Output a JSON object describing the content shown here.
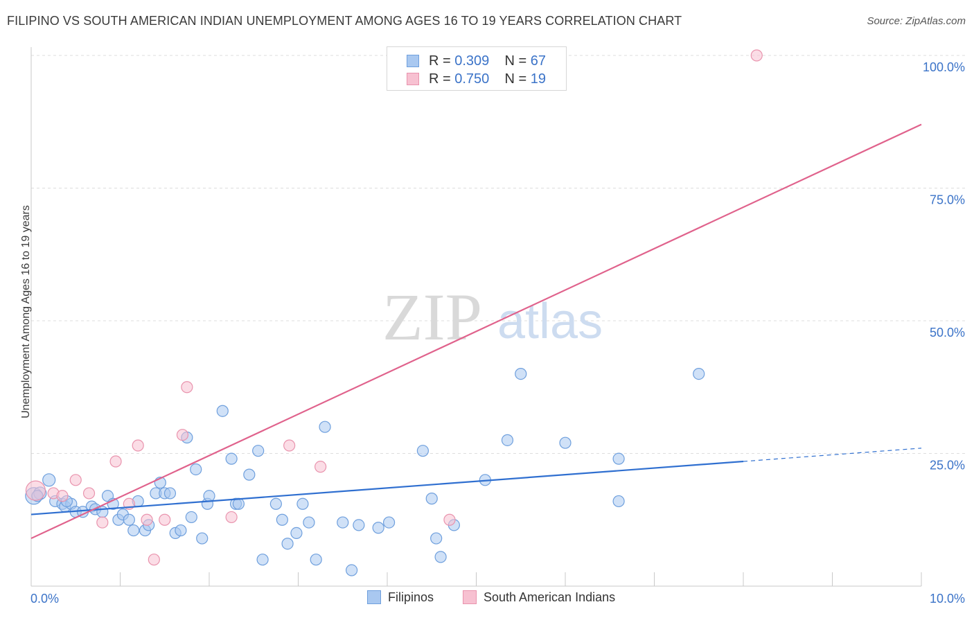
{
  "title": "FILIPINO VS SOUTH AMERICAN INDIAN UNEMPLOYMENT AMONG AGES 16 TO 19 YEARS CORRELATION CHART",
  "source": "Source: ZipAtlas.com",
  "watermark": {
    "zip": "ZIP",
    "atlas": "atlas"
  },
  "legend": {
    "series1": {
      "r_label": "R = ",
      "r_value": "0.309",
      "n_label": "N = ",
      "n_value": "67"
    },
    "series2": {
      "r_label": "R = ",
      "r_value": "0.750",
      "n_label": "N = ",
      "n_value": "19"
    }
  },
  "bottom_legend": {
    "series1": "Filipinos",
    "series2": "South American Indians"
  },
  "colors": {
    "blue_fill": "#a9c8f0",
    "blue_stroke": "#6e9fdd",
    "blue_line": "#2f6fd0",
    "pink_fill": "#f7c1d1",
    "pink_stroke": "#e993ad",
    "pink_line": "#e0628c",
    "axis_text": "#3b73c8",
    "grid": "#dddddd"
  },
  "chart_data": {
    "type": "scatter",
    "title": "FILIPINO VS SOUTH AMERICAN INDIAN UNEMPLOYMENT AMONG AGES 16 TO 19 YEARS CORRELATION CHART",
    "xlabel": "",
    "ylabel": "Unemployment Among Ages 16 to 19 years",
    "xlim": [
      0,
      10
    ],
    "ylim": [
      0,
      102
    ],
    "x_tick_labels": [
      "0.0%",
      "10.0%"
    ],
    "y_ticks": [
      25,
      50,
      75,
      100
    ],
    "y_tick_labels": [
      "25.0%",
      "50.0%",
      "75.0%",
      "100.0%"
    ],
    "grid": true,
    "legend_position": "top-center",
    "series": [
      {
        "name": "Filipinos",
        "R": 0.309,
        "N": 67,
        "trend": {
          "x0": 0,
          "y0": 13.5,
          "x1": 8.0,
          "y1": 23.5,
          "dashed_to_x": 10.0,
          "dashed_to_y": 26.0
        },
        "points": [
          [
            0.03,
            17.0,
            12
          ],
          [
            0.1,
            17.5,
            9
          ],
          [
            0.2,
            20.0,
            9
          ],
          [
            0.27,
            16.0,
            8
          ],
          [
            0.35,
            15.5,
            8
          ],
          [
            0.38,
            15.0,
            8
          ],
          [
            0.45,
            15.5,
            8
          ],
          [
            0.5,
            14.0,
            8
          ],
          [
            0.58,
            14.0,
            8
          ],
          [
            0.68,
            15.0,
            8
          ],
          [
            0.72,
            14.5,
            8
          ],
          [
            0.8,
            14.0,
            8
          ],
          [
            0.86,
            17.0,
            8
          ],
          [
            0.92,
            15.5,
            8
          ],
          [
            0.98,
            12.5,
            8
          ],
          [
            1.03,
            13.5,
            8
          ],
          [
            1.1,
            12.5,
            8
          ],
          [
            1.15,
            10.5,
            8
          ],
          [
            1.2,
            16.0,
            8
          ],
          [
            1.28,
            10.5,
            8
          ],
          [
            1.32,
            11.5,
            8
          ],
          [
            1.4,
            17.5,
            8
          ],
          [
            1.45,
            19.5,
            8
          ],
          [
            1.5,
            17.5,
            8
          ],
          [
            1.56,
            17.5,
            8
          ],
          [
            1.62,
            10.0,
            8
          ],
          [
            1.68,
            10.5,
            8
          ],
          [
            1.75,
            28.0,
            8
          ],
          [
            1.8,
            13.0,
            8
          ],
          [
            1.85,
            22.0,
            8
          ],
          [
            1.92,
            9.0,
            8
          ],
          [
            1.98,
            15.5,
            8
          ],
          [
            2.0,
            17.0,
            8
          ],
          [
            2.15,
            33.0,
            8
          ],
          [
            2.25,
            24.0,
            8
          ],
          [
            2.3,
            15.5,
            8
          ],
          [
            2.33,
            15.5,
            8
          ],
          [
            2.45,
            21.0,
            8
          ],
          [
            2.55,
            25.5,
            8
          ],
          [
            2.6,
            5.0,
            8
          ],
          [
            2.75,
            15.5,
            8
          ],
          [
            2.82,
            12.5,
            8
          ],
          [
            2.88,
            8.0,
            8
          ],
          [
            2.98,
            10.0,
            8
          ],
          [
            3.05,
            15.5,
            8
          ],
          [
            3.12,
            12.0,
            8
          ],
          [
            3.2,
            5.0,
            8
          ],
          [
            3.3,
            30.0,
            8
          ],
          [
            3.5,
            12.0,
            8
          ],
          [
            3.6,
            3.0,
            8
          ],
          [
            3.68,
            11.5,
            8
          ],
          [
            3.9,
            11.0,
            8
          ],
          [
            4.02,
            12.0,
            8
          ],
          [
            4.4,
            25.5,
            8
          ],
          [
            4.5,
            16.5,
            8
          ],
          [
            4.55,
            9.0,
            8
          ],
          [
            4.6,
            5.5,
            8
          ],
          [
            4.75,
            11.5,
            8
          ],
          [
            5.1,
            20.0,
            8
          ],
          [
            5.35,
            27.5,
            8
          ],
          [
            5.5,
            40.0,
            8
          ],
          [
            6.0,
            27.0,
            8
          ],
          [
            6.6,
            24.0,
            8
          ],
          [
            6.6,
            16.0,
            8
          ],
          [
            7.5,
            40.0,
            8
          ],
          [
            0.07,
            17.0,
            8
          ],
          [
            0.4,
            16.0,
            8
          ]
        ]
      },
      {
        "name": "South American Indians",
        "R": 0.75,
        "N": 19,
        "trend": {
          "x0": 0,
          "y0": 9.0,
          "x1": 10.0,
          "y1": 87.0
        },
        "points": [
          [
            0.05,
            18.0,
            14
          ],
          [
            0.25,
            17.5,
            8
          ],
          [
            0.35,
            17.0,
            8
          ],
          [
            0.5,
            20.0,
            8
          ],
          [
            0.65,
            17.5,
            8
          ],
          [
            0.8,
            12.0,
            8
          ],
          [
            0.95,
            23.5,
            8
          ],
          [
            1.1,
            15.5,
            8
          ],
          [
            1.2,
            26.5,
            8
          ],
          [
            1.3,
            12.5,
            8
          ],
          [
            1.38,
            5.0,
            8
          ],
          [
            1.5,
            12.5,
            8
          ],
          [
            1.7,
            28.5,
            8
          ],
          [
            1.75,
            37.5,
            8
          ],
          [
            2.25,
            13.0,
            8
          ],
          [
            2.9,
            26.5,
            8
          ],
          [
            3.25,
            22.5,
            8
          ],
          [
            4.7,
            12.5,
            8
          ],
          [
            8.15,
            100.0,
            8
          ]
        ]
      }
    ]
  }
}
